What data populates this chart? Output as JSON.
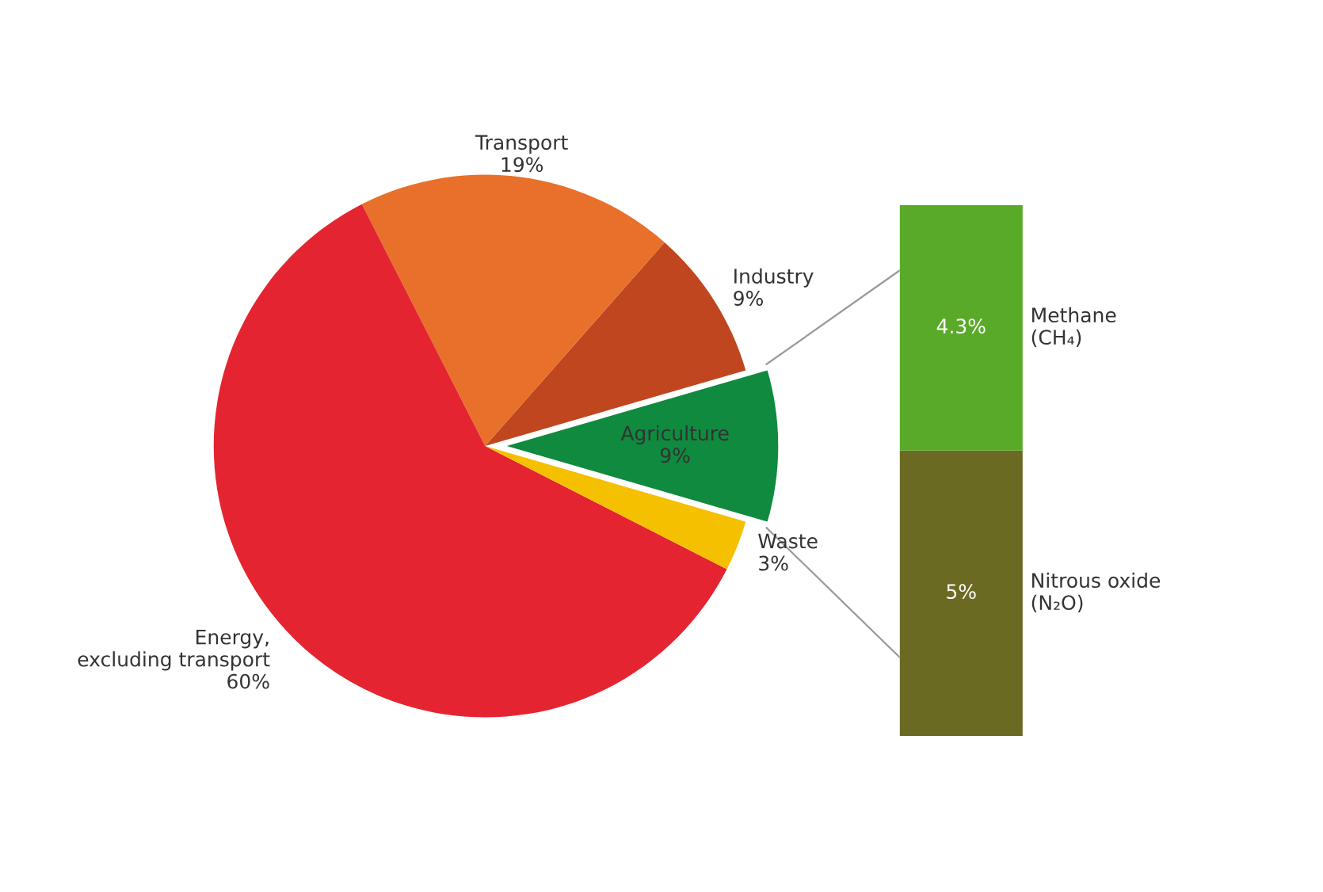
{
  "chart_data": [
    {
      "type": "pie",
      "categories": [
        "Agriculture",
        "Industry",
        "Transport",
        "Energy,\nexcluding transport",
        "Waste"
      ],
      "values": [
        9,
        9,
        19,
        60,
        3
      ],
      "colors": [
        "#0f8a3e",
        "#c0461f",
        "#e8702a",
        "#e42531",
        "#f5c000"
      ],
      "value_labels": [
        "9%",
        "9%",
        "19%",
        "60%",
        "3%"
      ]
    },
    {
      "type": "bar",
      "stacked": true,
      "categories": [
        null
      ],
      "series": [
        {
          "name": "Nitrous oxide\n(N₂O)",
          "color": "#6b6a22",
          "values": [
            5
          ],
          "value_labels": [
            "5%"
          ]
        },
        {
          "name": "Methane\n(CH₄)",
          "color": "#5aaa2a",
          "values": [
            4.3
          ],
          "value_labels": [
            "4.3%"
          ]
        }
      ]
    }
  ]
}
